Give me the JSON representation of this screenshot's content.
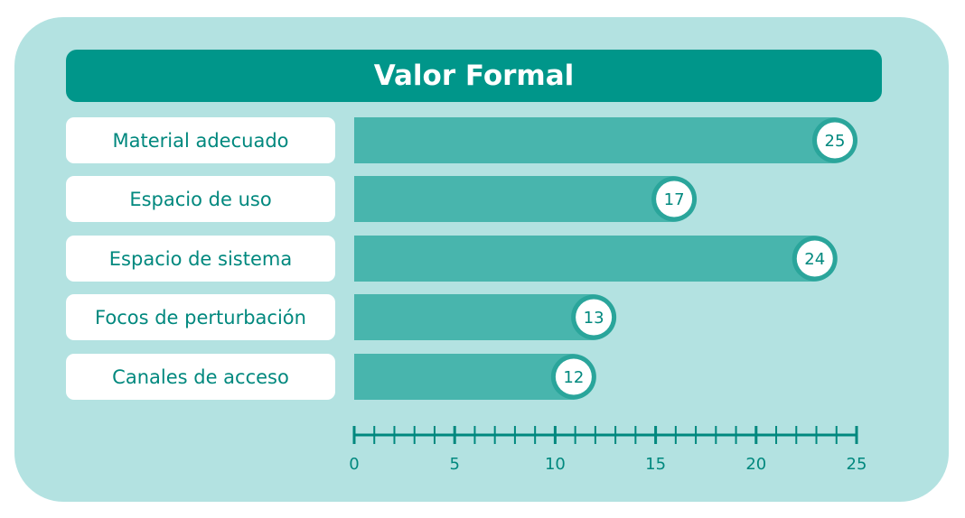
{
  "colors": {
    "panel_bg": "#b3e2e1",
    "title_bg": "#00968a",
    "bar_fill": "#48b5ad",
    "bar_edge": "#2aa59b",
    "text_teal": "#00887e",
    "label_bg": "#ffffff"
  },
  "chart_data": {
    "type": "bar",
    "orientation": "horizontal",
    "title": "Valor Formal",
    "categories": [
      "Material adecuado",
      "Espacio de uso",
      "Espacio de sistema",
      "Focos de perturbación",
      "Canales de acceso"
    ],
    "values": [
      25,
      17,
      24,
      13,
      12
    ],
    "xlim": [
      0,
      25
    ],
    "x_major_ticks": [
      0,
      5,
      10,
      15,
      20,
      25
    ],
    "x_minor_tick_step": 1,
    "grid": false,
    "legend": "none"
  }
}
